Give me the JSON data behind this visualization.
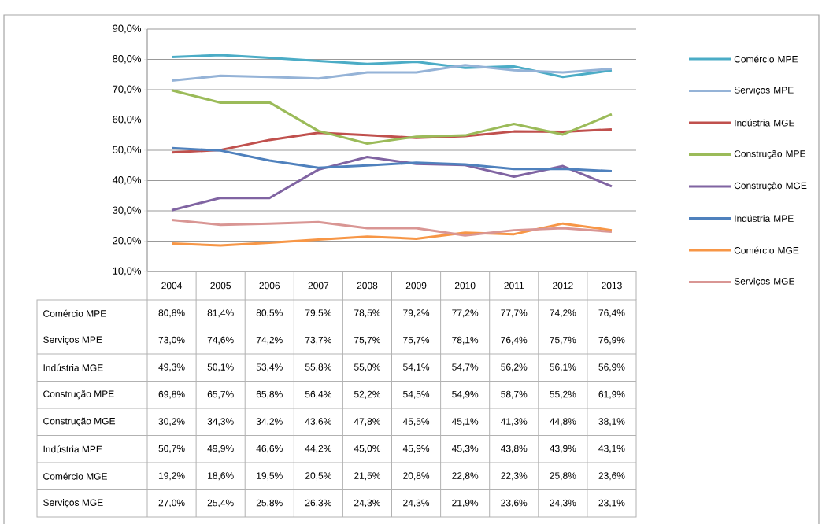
{
  "chart_data": {
    "type": "line",
    "categories": [
      "2004",
      "2005",
      "2006",
      "2007",
      "2008",
      "2009",
      "2010",
      "2011",
      "2012",
      "2013"
    ],
    "series": [
      {
        "name": "Comércio MPE",
        "color": "#4bacc6",
        "values": [
          80.8,
          81.4,
          80.5,
          79.5,
          78.5,
          79.2,
          77.2,
          77.7,
          74.2,
          76.4
        ],
        "value_labels": [
          "80,8%",
          "81,4%",
          "80,5%",
          "79,5%",
          "78,5%",
          "79,2%",
          "77,2%",
          "77,7%",
          "74,2%",
          "76,4%"
        ]
      },
      {
        "name": "Serviços MPE",
        "color": "#95b3d7",
        "values": [
          73.0,
          74.6,
          74.2,
          73.7,
          75.7,
          75.7,
          78.1,
          76.4,
          75.7,
          76.9
        ],
        "value_labels": [
          "73,0%",
          "74,6%",
          "74,2%",
          "73,7%",
          "75,7%",
          "75,7%",
          "78,1%",
          "76,4%",
          "75,7%",
          "76,9%"
        ]
      },
      {
        "name": "Indústria MGE",
        "color": "#c0504d",
        "values": [
          49.3,
          50.1,
          53.4,
          55.8,
          55.0,
          54.1,
          54.7,
          56.2,
          56.1,
          56.9
        ],
        "value_labels": [
          "49,3%",
          "50,1%",
          "53,4%",
          "55,8%",
          "55,0%",
          "54,1%",
          "54,7%",
          "56,2%",
          "56,1%",
          "56,9%"
        ]
      },
      {
        "name": "Construção MPE",
        "color": "#9bbb59",
        "values": [
          69.8,
          65.7,
          65.8,
          56.4,
          52.2,
          54.5,
          54.9,
          58.7,
          55.2,
          61.9
        ],
        "value_labels": [
          "69,8%",
          "65,7%",
          "65,8%",
          "56,4%",
          "52,2%",
          "54,5%",
          "54,9%",
          "58,7%",
          "55,2%",
          "61,9%"
        ]
      },
      {
        "name": "Construção MGE",
        "color": "#8064a2",
        "values": [
          30.2,
          34.3,
          34.2,
          43.6,
          47.8,
          45.5,
          45.1,
          41.3,
          44.8,
          38.1
        ],
        "value_labels": [
          "30,2%",
          "34,3%",
          "34,2%",
          "43,6%",
          "47,8%",
          "45,5%",
          "45,1%",
          "41,3%",
          "44,8%",
          "38,1%"
        ]
      },
      {
        "name": "Indústria MPE",
        "color": "#4f81bd",
        "values": [
          50.7,
          49.9,
          46.6,
          44.2,
          45.0,
          45.9,
          45.3,
          43.8,
          43.9,
          43.1
        ],
        "value_labels": [
          "50,7%",
          "49,9%",
          "46,6%",
          "44,2%",
          "45,0%",
          "45,9%",
          "45,3%",
          "43,8%",
          "43,9%",
          "43,1%"
        ]
      },
      {
        "name": "Comércio MGE",
        "color": "#f79646",
        "values": [
          19.2,
          18.6,
          19.5,
          20.5,
          21.5,
          20.8,
          22.8,
          22.3,
          25.8,
          23.6
        ],
        "value_labels": [
          "19,2%",
          "18,6%",
          "19,5%",
          "20,5%",
          "21,5%",
          "20,8%",
          "22,8%",
          "22,3%",
          "25,8%",
          "23,6%"
        ]
      },
      {
        "name": "Serviços MGE",
        "color": "#d99694",
        "values": [
          27.0,
          25.4,
          25.8,
          26.3,
          24.3,
          24.3,
          21.9,
          23.6,
          24.3,
          23.1
        ],
        "value_labels": [
          "27,0%",
          "25,4%",
          "25,8%",
          "26,3%",
          "24,3%",
          "24,3%",
          "21,9%",
          "23,6%",
          "24,3%",
          "23,1%"
        ]
      }
    ],
    "ylim": [
      10,
      90
    ],
    "yticks": [
      {
        "value": 10,
        "label": "10,0%"
      },
      {
        "value": 20,
        "label": "20,0%"
      },
      {
        "value": 30,
        "label": "30,0%"
      },
      {
        "value": 40,
        "label": "40,0%"
      },
      {
        "value": 50,
        "label": "50,0%"
      },
      {
        "value": 60,
        "label": "60,0%"
      },
      {
        "value": 70,
        "label": "70,0%"
      },
      {
        "value": 80,
        "label": "80,0%"
      },
      {
        "value": 90,
        "label": "90,0%"
      }
    ],
    "grid": "y",
    "legend": "right",
    "marker": "none",
    "line_style": "solid"
  }
}
